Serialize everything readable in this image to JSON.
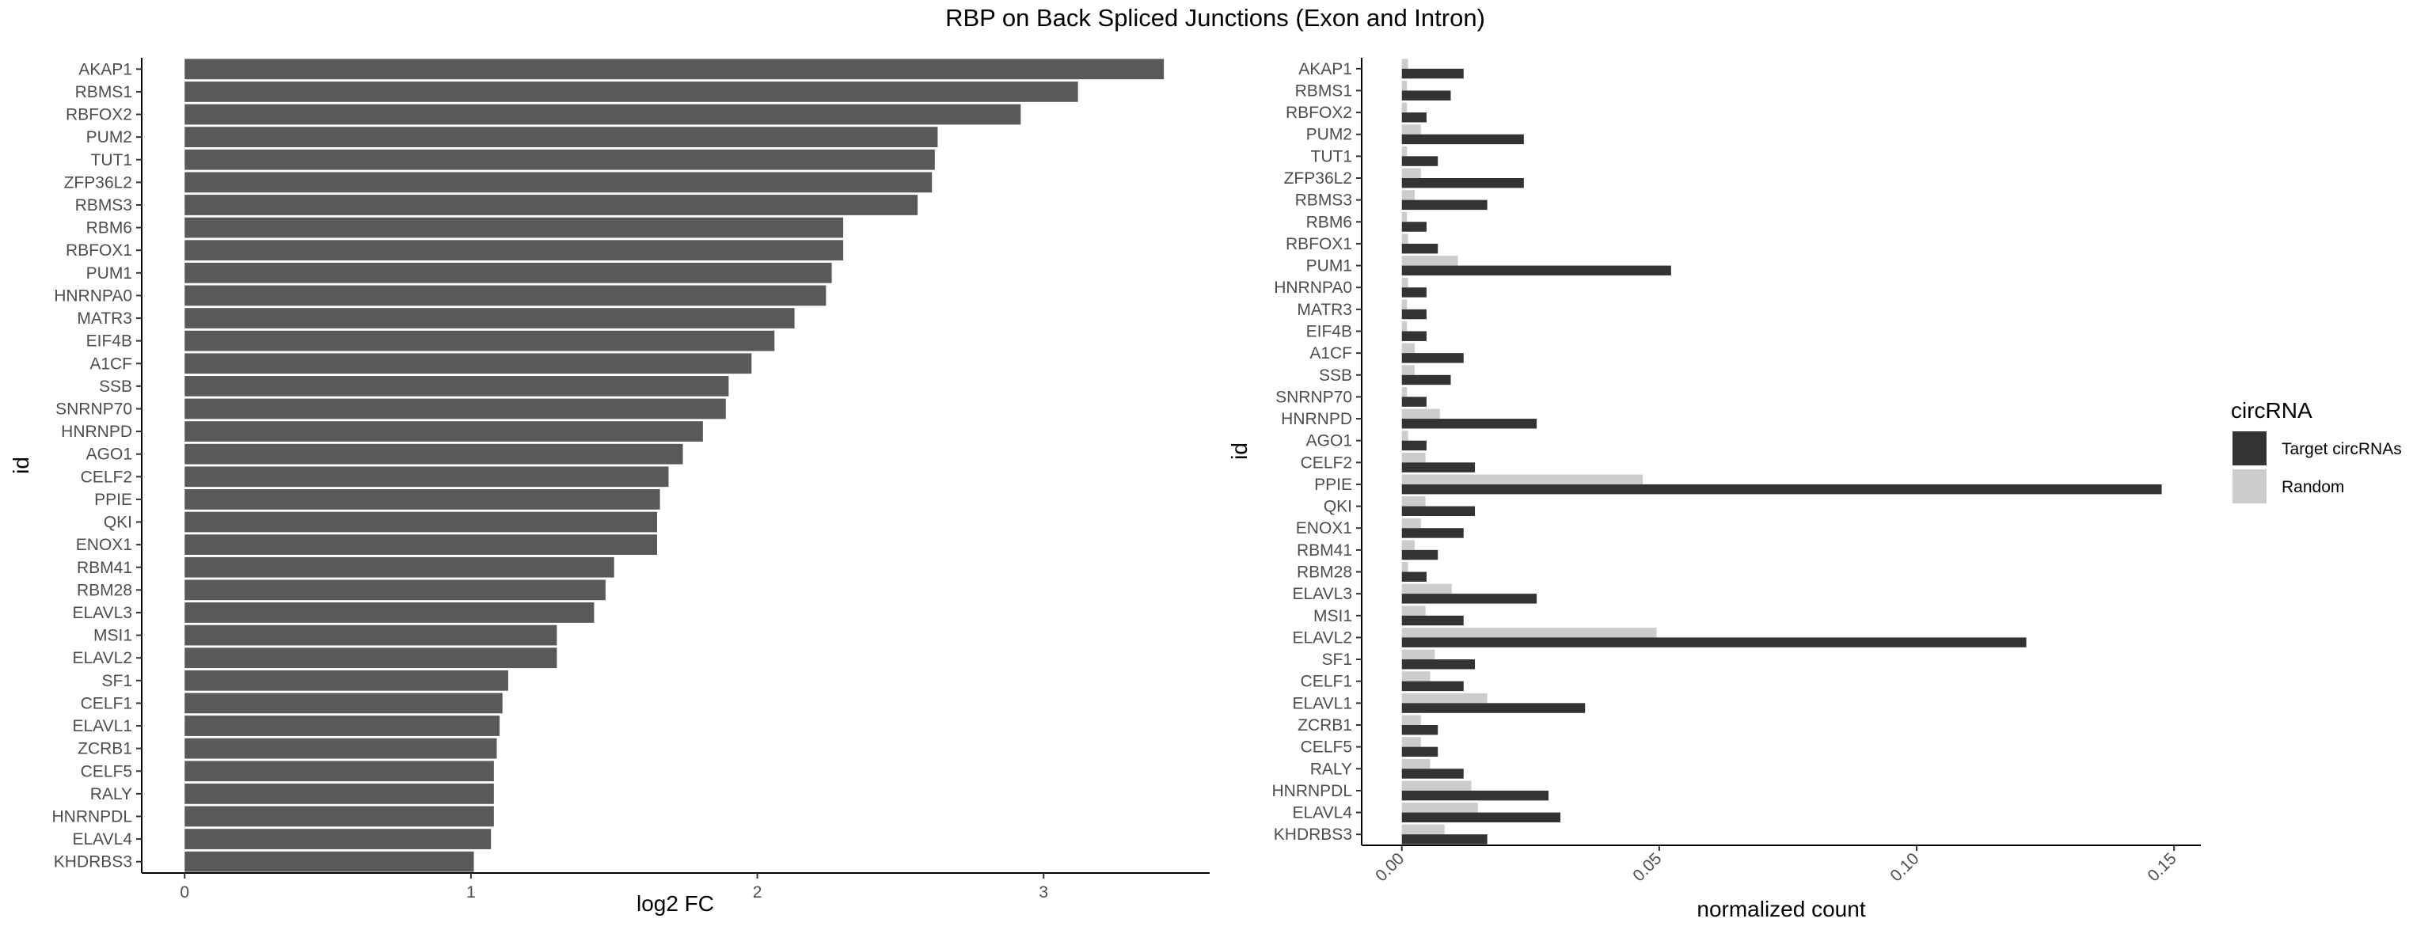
{
  "figure": {
    "title": "RBP on Back Spliced Junctions (Exon and Intron)"
  },
  "chart_data": [
    {
      "type": "bar",
      "orientation": "horizontal",
      "xlabel": "log2 FC",
      "ylabel": "id",
      "xlim": [
        -0.15,
        3.58
      ],
      "xticks": [
        "0",
        "1",
        "2",
        "3"
      ],
      "grid": false,
      "bar_color": "#595959",
      "categories": [
        "AKAP1",
        "RBMS1",
        "RBFOX2",
        "PUM2",
        "TUT1",
        "ZFP36L2",
        "RBMS3",
        "RBM6",
        "RBFOX1",
        "PUM1",
        "HNRNPA0",
        "MATR3",
        "EIF4B",
        "A1CF",
        "SSB",
        "SNRNP70",
        "HNRNPD",
        "AGO1",
        "CELF2",
        "PPIE",
        "QKI",
        "ENOX1",
        "RBM41",
        "RBM28",
        "ELAVL3",
        "MSI1",
        "ELAVL2",
        "SF1",
        "CELF1",
        "ELAVL1",
        "ZCRB1",
        "CELF5",
        "RALY",
        "HNRNPDL",
        "ELAVL4",
        "KHDRBS3"
      ],
      "values": [
        3.42,
        3.12,
        2.92,
        2.63,
        2.62,
        2.61,
        2.56,
        2.3,
        2.3,
        2.26,
        2.24,
        2.13,
        2.06,
        1.98,
        1.9,
        1.89,
        1.81,
        1.74,
        1.69,
        1.66,
        1.65,
        1.65,
        1.5,
        1.47,
        1.43,
        1.3,
        1.3,
        1.13,
        1.11,
        1.1,
        1.09,
        1.08,
        1.08,
        1.08,
        1.07,
        1.01
      ]
    },
    {
      "type": "bar",
      "orientation": "horizontal",
      "xlabel": "normalized count",
      "ylabel": "id",
      "xlim": [
        -0.0078,
        0.1552
      ],
      "xticks": [
        "0.00",
        "0.05",
        "0.10",
        "0.15"
      ],
      "grid": false,
      "legend": {
        "title": "circRNA",
        "position": "right"
      },
      "categories": [
        "AKAP1",
        "RBMS1",
        "RBFOX2",
        "PUM2",
        "TUT1",
        "ZFP36L2",
        "RBMS3",
        "RBM6",
        "RBFOX1",
        "PUM1",
        "HNRNPA0",
        "MATR3",
        "EIF4B",
        "A1CF",
        "SSB",
        "SNRNP70",
        "HNRNPD",
        "AGO1",
        "CELF2",
        "PPIE",
        "QKI",
        "ENOX1",
        "RBM41",
        "RBM28",
        "ELAVL3",
        "MSI1",
        "ELAVL2",
        "SF1",
        "CELF1",
        "ELAVL1",
        "ZCRB1",
        "CELF5",
        "RALY",
        "HNRNPDL",
        "ELAVL4",
        "KHDRBS3"
      ],
      "series": [
        {
          "name": "Target circRNAs",
          "color": "#333333",
          "values": [
            0.012,
            0.0095,
            0.0048,
            0.0237,
            0.007,
            0.0237,
            0.0166,
            0.0048,
            0.007,
            0.0523,
            0.0048,
            0.0048,
            0.0048,
            0.012,
            0.0095,
            0.0048,
            0.0262,
            0.0048,
            0.0142,
            0.1476,
            0.0142,
            0.012,
            0.007,
            0.0048,
            0.0262,
            0.012,
            0.1213,
            0.0142,
            0.012,
            0.0356,
            0.007,
            0.007,
            0.012,
            0.0285,
            0.0308,
            0.0166
          ]
        },
        {
          "name": "Random",
          "color": "#cccccc",
          "values": [
            0.0012,
            0.001,
            0.001,
            0.0037,
            0.001,
            0.0037,
            0.0025,
            0.001,
            0.0012,
            0.0109,
            0.0012,
            0.001,
            0.001,
            0.0025,
            0.0025,
            0.001,
            0.0074,
            0.0012,
            0.0046,
            0.0468,
            0.0046,
            0.0037,
            0.0025,
            0.0012,
            0.0097,
            0.0046,
            0.0495,
            0.0064,
            0.0055,
            0.0166,
            0.0037,
            0.0037,
            0.0055,
            0.0135,
            0.0148,
            0.0083
          ]
        }
      ]
    }
  ]
}
